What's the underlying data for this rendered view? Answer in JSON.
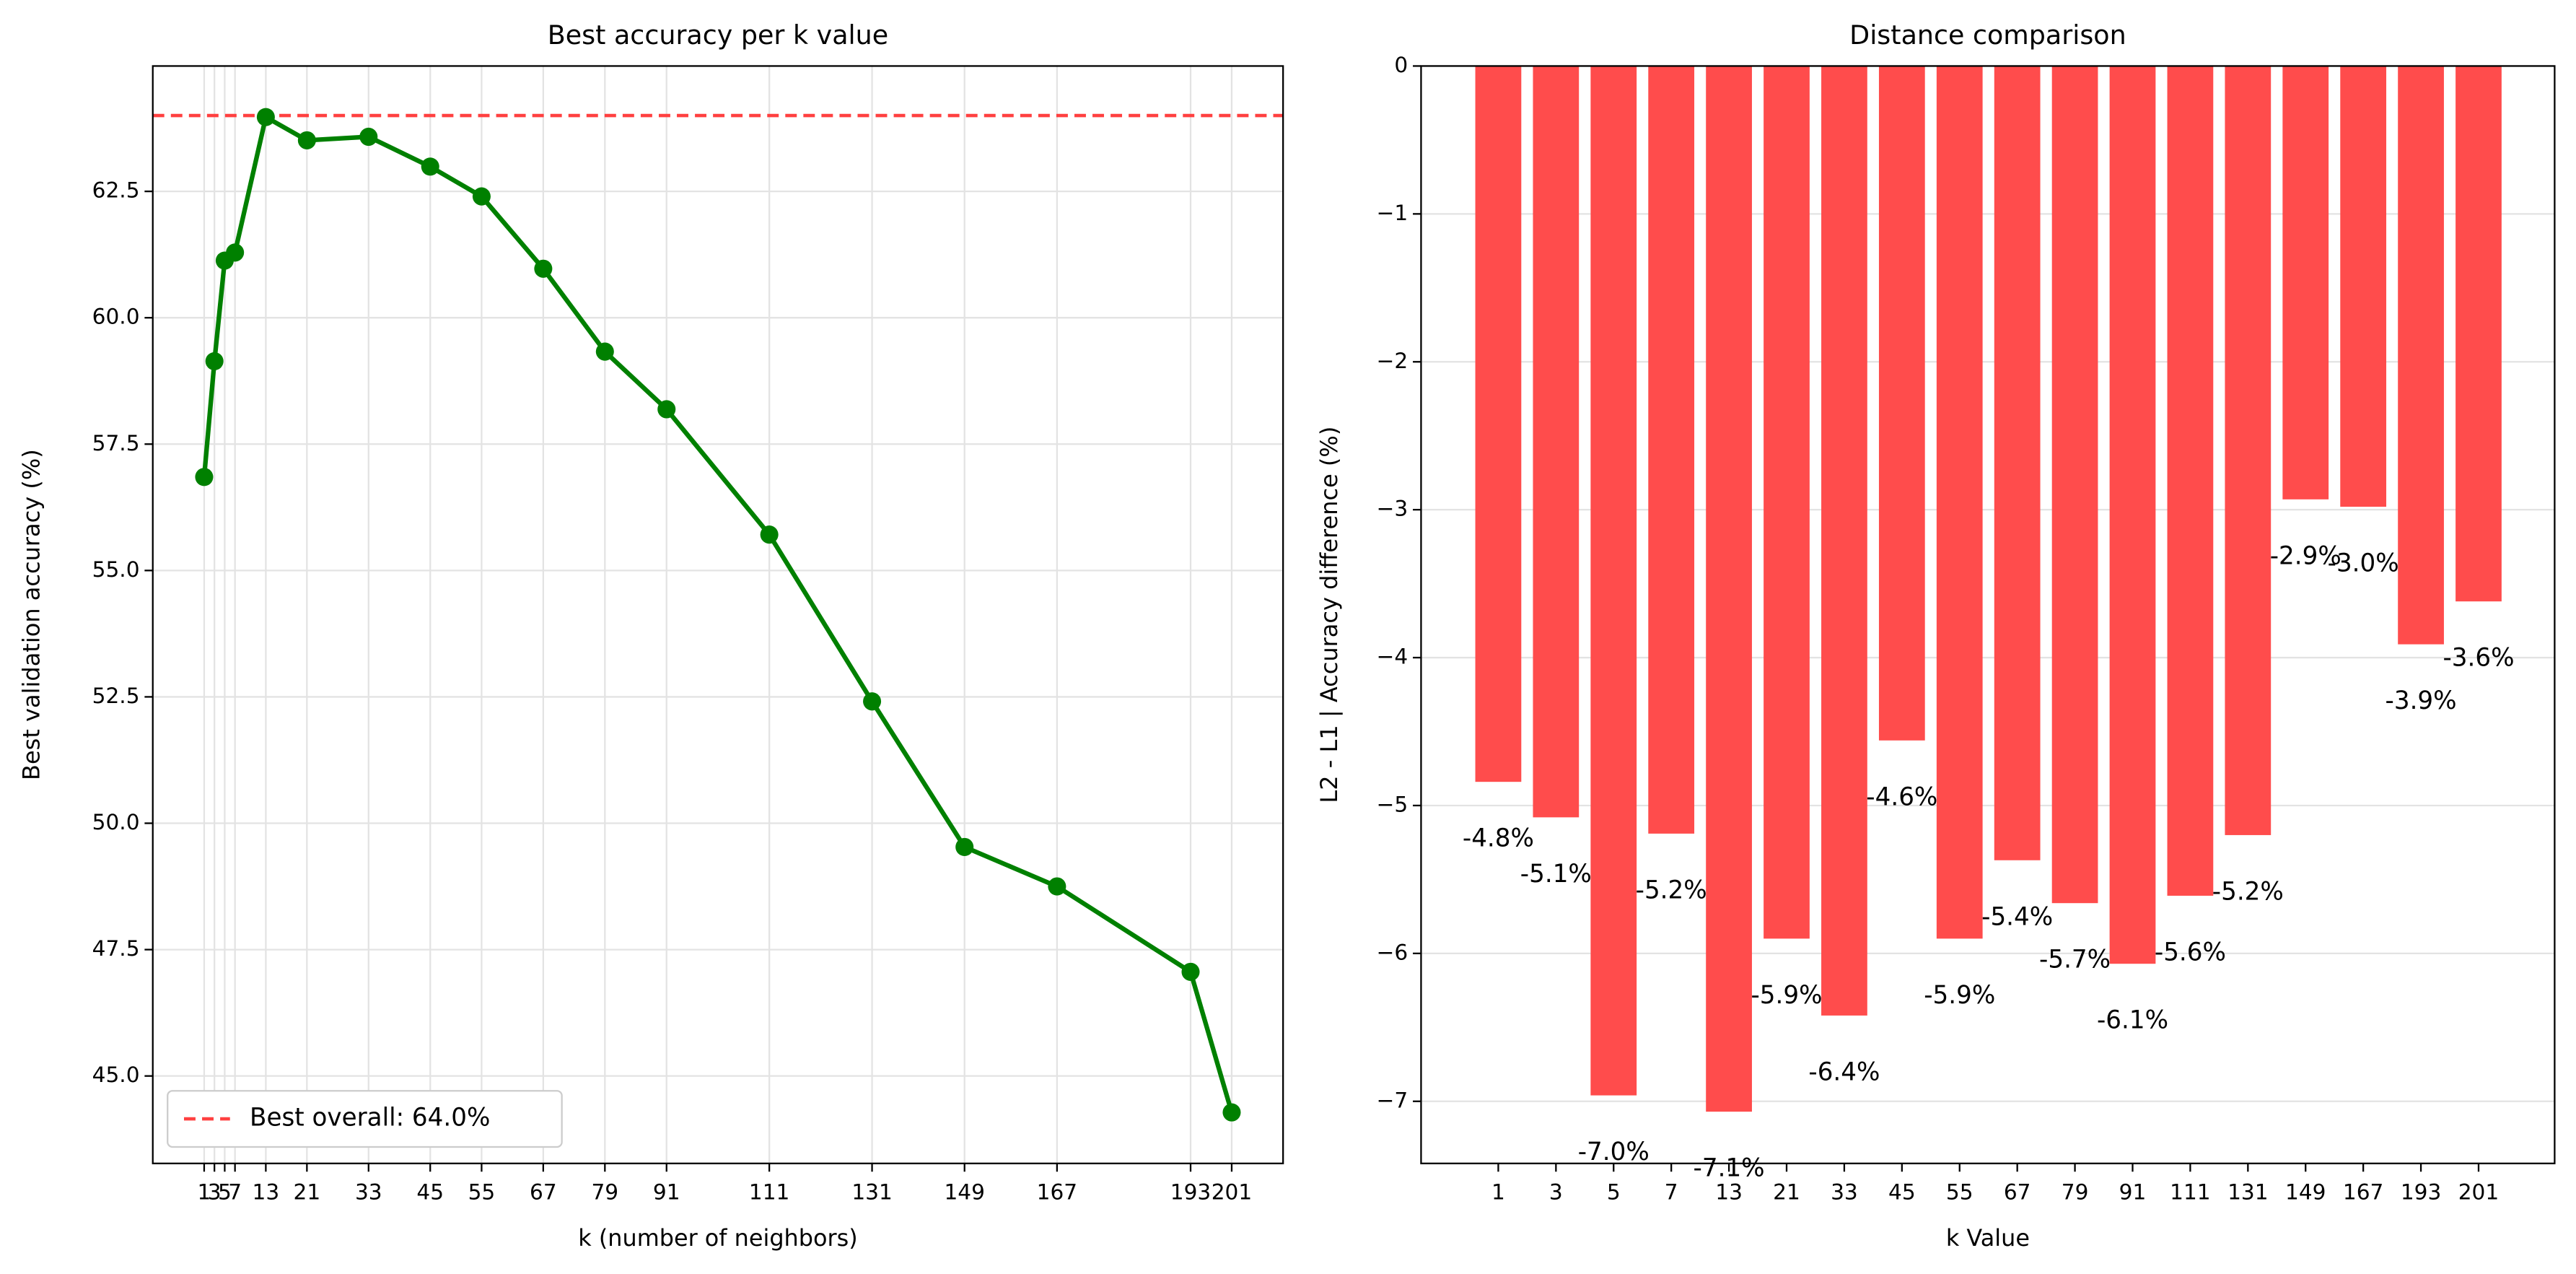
{
  "chart_data": [
    {
      "type": "line",
      "title": "Best accuracy per k value",
      "xlabel": "k (number of neighbors)",
      "ylabel": "Best validation accuracy (%)",
      "x": [
        1,
        3,
        5,
        7,
        13,
        21,
        33,
        45,
        55,
        67,
        79,
        91,
        111,
        131,
        149,
        167,
        193,
        201
      ],
      "values": [
        56.85,
        59.14,
        61.13,
        61.29,
        63.97,
        63.51,
        63.58,
        62.99,
        62.4,
        60.97,
        59.33,
        58.19,
        55.71,
        52.41,
        49.53,
        48.75,
        47.06,
        44.28
      ],
      "color": "#008000",
      "xlim": [
        -9,
        211
      ],
      "xticks": [
        1,
        3,
        5,
        7,
        13,
        21,
        33,
        45,
        55,
        67,
        79,
        91,
        111,
        131,
        149,
        167,
        193,
        201
      ],
      "ylim": [
        43.27,
        64.98
      ],
      "yticks": [
        {
          "value": 45,
          "label": "45.0"
        },
        47.5,
        {
          "value": 50,
          "label": "50.0"
        },
        52.5,
        {
          "value": 55,
          "label": "55.0"
        },
        57.5,
        {
          "value": 60,
          "label": "60.0"
        },
        62.5
      ],
      "hline": {
        "value": 64.0,
        "label": "Best overall: 64.0%",
        "color": "#ff4040"
      },
      "legend_loc": "lower left",
      "grid": true
    },
    {
      "type": "bar",
      "title": "Distance comparison",
      "xlabel": "k Value",
      "ylabel": "L2 - L1 | Accuracy difference (%)",
      "categories": [
        "1",
        "3",
        "5",
        "7",
        "13",
        "21",
        "33",
        "45",
        "55",
        "67",
        "79",
        "91",
        "111",
        "131",
        "149",
        "167",
        "193",
        "201"
      ],
      "values": [
        -4.84,
        -5.08,
        -6.96,
        -5.19,
        -7.07,
        -5.9,
        -6.42,
        -4.56,
        -5.9,
        -5.37,
        -5.66,
        -6.07,
        -5.61,
        -5.2,
        -2.93,
        -2.98,
        -3.91,
        -3.62
      ],
      "value_labels": [
        "-4.8%",
        "-5.1%",
        "-7.0%",
        "-5.2%",
        "-7.1%",
        "-5.9%",
        "-6.4%",
        "-4.6%",
        "-5.9%",
        "-5.4%",
        "-5.7%",
        "-6.1%",
        "-5.6%",
        "-5.2%",
        "-2.9%",
        "-3.0%",
        "-3.9%",
        "-3.6%"
      ],
      "color": "#ff4c4c",
      "ylim": [
        -7.42,
        0
      ],
      "yticks": [
        {
          "value": -7,
          "label": "−7"
        },
        {
          "value": -6,
          "label": "−6"
        },
        {
          "value": -5,
          "label": "−5"
        },
        {
          "value": -4,
          "label": "−4"
        },
        {
          "value": -3,
          "label": "−3"
        },
        {
          "value": -2,
          "label": "−2"
        },
        {
          "value": -1,
          "label": "−1"
        },
        0
      ],
      "grid": true
    }
  ]
}
